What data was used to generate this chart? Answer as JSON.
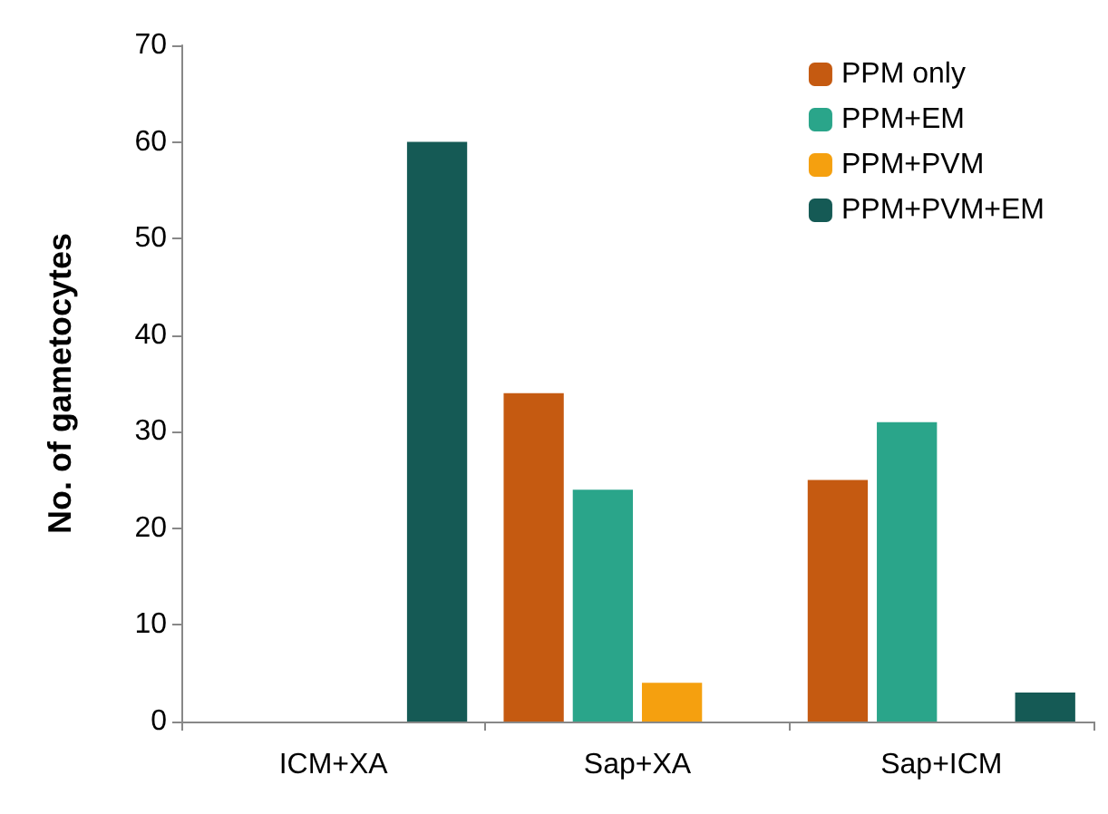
{
  "chart_data": {
    "type": "bar",
    "ylabel": "No. of gametocytes",
    "categories": [
      "ICM+XA",
      "Sap+XA",
      "Sap+ICM"
    ],
    "series": [
      {
        "name": "PPM only",
        "color": "#c55a11",
        "values": [
          0,
          34,
          25
        ]
      },
      {
        "name": "PPM+EM",
        "color": "#2aa58a",
        "values": [
          0,
          24,
          31
        ]
      },
      {
        "name": "PPM+PVM",
        "color": "#f5a00f",
        "values": [
          0,
          4,
          0
        ]
      },
      {
        "name": "PPM+PVM+EM",
        "color": "#155a55",
        "values": [
          60,
          0,
          3
        ]
      }
    ],
    "ylim": [
      0,
      70
    ],
    "yticks": [
      0,
      10,
      20,
      30,
      40,
      50,
      60,
      70
    ],
    "grid": false,
    "legend": "top right"
  }
}
